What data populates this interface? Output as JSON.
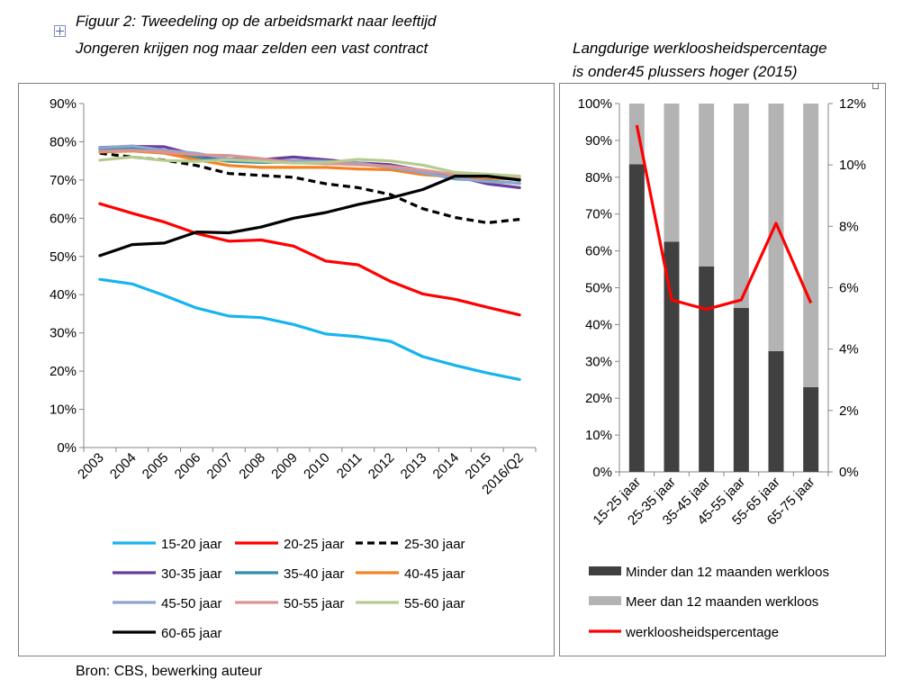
{
  "figure": {
    "title_line1": "Figuur 2:  Tweedeling op de arbeidsmarkt naar leeftijd",
    "title_line2": "Jongeren krijgen nog maar zelden een vast contract",
    "right_title_line1": "Langdurige  werkloosheidspercentage",
    "right_title_line2": "is onder45  plussers hoger (2015)",
    "source": "Bron: CBS, bewerking auteur"
  },
  "chart_data": [
    {
      "type": "line",
      "title": "Tweedeling op de arbeidsmarkt naar leeftijd",
      "categories": [
        "2003",
        "2004",
        "2005",
        "2006",
        "2007",
        "2008",
        "2009",
        "2010",
        "2011",
        "2012",
        "2013",
        "2014",
        "2015",
        "2016/Q2"
      ],
      "yticks": [
        "0%",
        "10%",
        "20%",
        "30%",
        "40%",
        "50%",
        "60%",
        "70%",
        "80%",
        "90%"
      ],
      "ylim": [
        0,
        90
      ],
      "series": [
        {
          "name": "15-20 jaar",
          "color": "#16b4ef",
          "dash": "",
          "values": [
            44,
            42.8,
            39.8,
            36.5,
            34.4,
            34,
            32.2,
            29.7,
            29,
            27.8,
            23.8,
            21.5,
            19.5,
            17.8
          ]
        },
        {
          "name": "20-25 jaar",
          "color": "#ff0000",
          "dash": "",
          "values": [
            63.8,
            61.3,
            59,
            56,
            54,
            54.3,
            52.7,
            48.8,
            47.8,
            43.5,
            40.2,
            38.8,
            36.7,
            34.7
          ]
        },
        {
          "name": "25-30 jaar",
          "color": "#000000",
          "dash": "8,5",
          "values": [
            77,
            76,
            75.2,
            73.8,
            71.7,
            71.2,
            70.7,
            69,
            68,
            66.2,
            62.5,
            60.2,
            58.8,
            59.7
          ]
        },
        {
          "name": "30-35 jaar",
          "color": "#6a3d9a",
          "dash": "",
          "values": [
            78.5,
            78.8,
            78.7,
            76.5,
            75.5,
            75.3,
            76,
            75.3,
            74.5,
            74,
            72.5,
            71,
            69,
            68
          ]
        },
        {
          "name": "35-40 jaar",
          "color": "#2e8fb0",
          "dash": "",
          "values": [
            78,
            78.2,
            77.3,
            75.8,
            74.9,
            74.6,
            74.7,
            74.3,
            74.2,
            73.4,
            72,
            70.3,
            69.8,
            69.1
          ]
        },
        {
          "name": "40-45 jaar",
          "color": "#f58220",
          "dash": "",
          "values": [
            77.3,
            77.6,
            77,
            75.3,
            73.8,
            73.3,
            73.3,
            73.3,
            72.9,
            72.7,
            71.4,
            70.8,
            70.5,
            70.2
          ]
        },
        {
          "name": "45-50 jaar",
          "color": "#8ea5cf",
          "dash": "",
          "values": [
            78.4,
            78.9,
            77.8,
            77,
            75.5,
            74.9,
            75.1,
            74.9,
            74.5,
            73.3,
            71.9,
            70.5,
            69.6,
            69.2
          ]
        },
        {
          "name": "50-55 jaar",
          "color": "#d99594",
          "dash": "",
          "values": [
            77.5,
            77.8,
            77.3,
            76.6,
            76.4,
            75.6,
            74.5,
            74.3,
            74,
            73.6,
            72.6,
            71.4,
            70.8,
            70.6
          ]
        },
        {
          "name": "55-60 jaar",
          "color": "#b5cc8e",
          "dash": "",
          "values": [
            75.2,
            76,
            75.1,
            74.9,
            75.3,
            74.9,
            74.4,
            74.6,
            75.4,
            75,
            73.9,
            72,
            71.5,
            71
          ]
        },
        {
          "name": "60-65 jaar",
          "color": "#000000",
          "dash": "",
          "values": [
            50.2,
            53.1,
            53.5,
            56.4,
            56.2,
            57.7,
            60,
            61.5,
            63.6,
            65.3,
            67.5,
            71,
            71,
            70
          ]
        }
      ]
    },
    {
      "type": "bar",
      "title": "Langdurige werkloosheidspercentage is onder45 plussers hoger (2015)",
      "categories": [
        "15-25 jaar",
        "25-35 jaar",
        "35-45 jaar",
        "45-55 jaar",
        "55-65 jaar",
        "65-75 jaar"
      ],
      "stacked": true,
      "yticks_left": [
        "0%",
        "10%",
        "20%",
        "30%",
        "40%",
        "50%",
        "60%",
        "70%",
        "80%",
        "90%",
        "100%"
      ],
      "yticks_right": [
        "0%",
        "2%",
        "4%",
        "6%",
        "8%",
        "10%",
        "12%"
      ],
      "ylim_left": [
        0,
        100
      ],
      "ylim_right": [
        0,
        12
      ],
      "series": [
        {
          "name": "Minder dan 12 maanden werkloos",
          "color": "#404040",
          "values": [
            83.5,
            62.5,
            55.8,
            44.5,
            32.8,
            23
          ]
        },
        {
          "name": "Meer dan 12 maanden werkloos",
          "color": "#b3b3b3",
          "values": [
            16.5,
            37.5,
            44.2,
            55.5,
            67.2,
            77
          ]
        },
        {
          "name": "werkloosheidspercentage",
          "color": "#ff0000",
          "axis": "right",
          "type": "line",
          "values": [
            11.3,
            5.6,
            5.3,
            5.6,
            8.1,
            5.5
          ]
        }
      ]
    }
  ]
}
